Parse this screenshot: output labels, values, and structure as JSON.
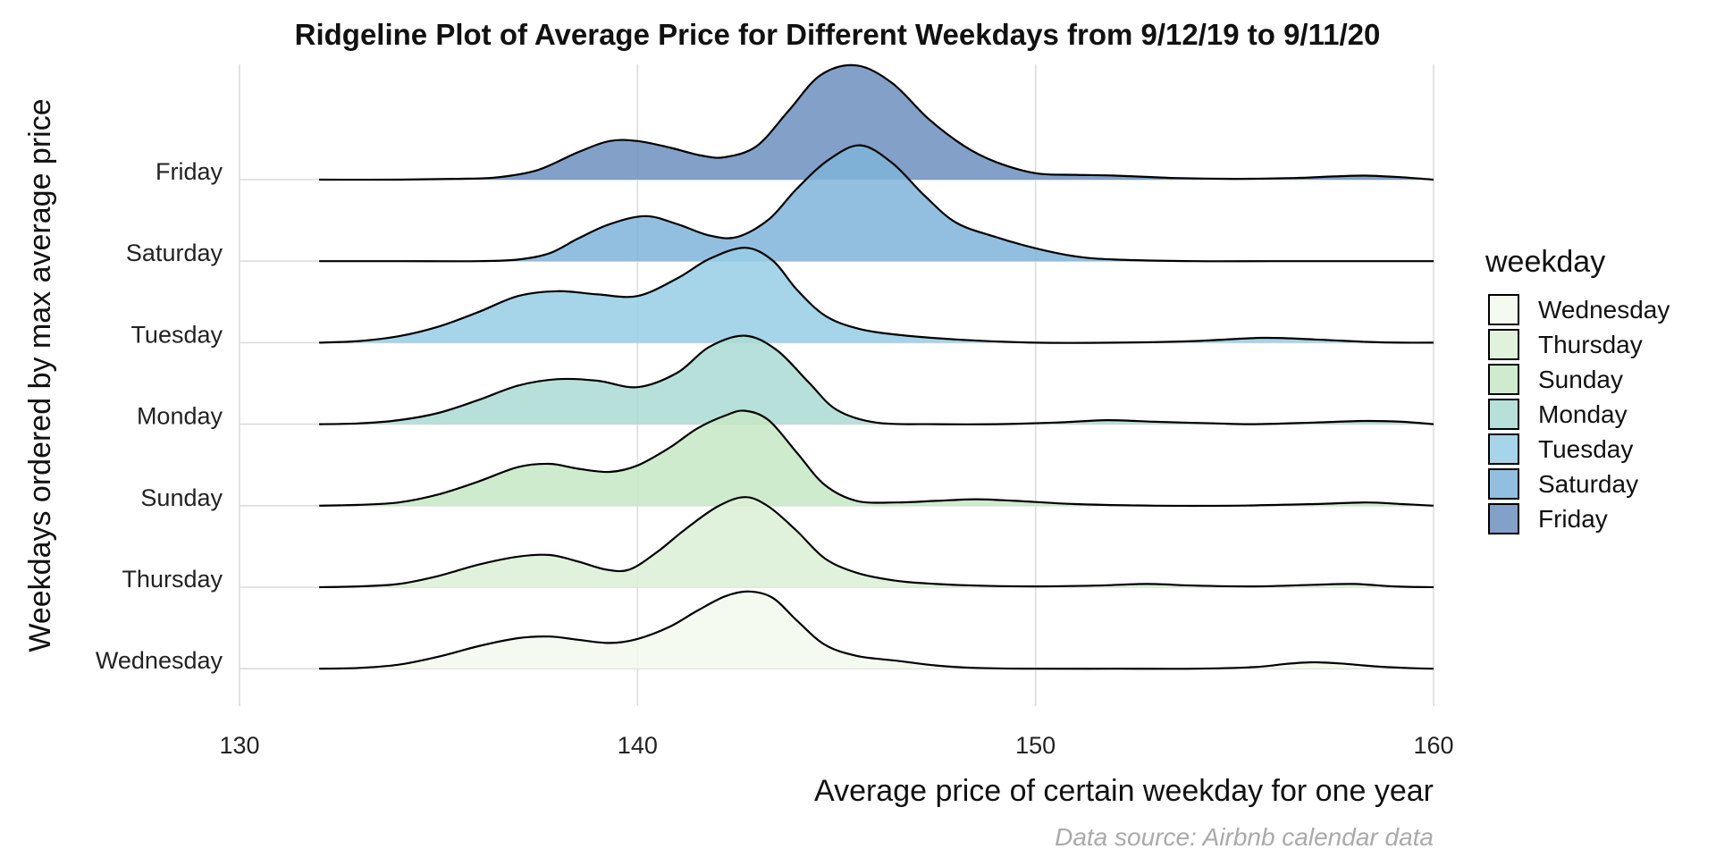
{
  "chart_data": {
    "type": "ridgeline",
    "title": "Ridgeline Plot of Average Price for Different Weekdays from 9/12/19 to 9/11/20",
    "xlabel": "Average price of certain weekday for one year",
    "ylabel": "Weekdays ordered by max average price",
    "caption": "Data source: Airbnb calendar data",
    "xlim": [
      130,
      160
    ],
    "x_ticks": [
      130,
      140,
      150,
      160
    ],
    "x_tick_labels": [
      "130",
      "140",
      "150",
      "160"
    ],
    "grid": true,
    "legend": {
      "title": "weekday",
      "position": "right",
      "entries": [
        "Wednesday",
        "Thursday",
        "Sunday",
        "Monday",
        "Tuesday",
        "Saturday",
        "Friday"
      ]
    },
    "series": [
      {
        "name": "Wednesday",
        "color": "#f3f9ef",
        "x": [
          132,
          133,
          134,
          135,
          136,
          137,
          137.8,
          138.5,
          139.3,
          140,
          140.8,
          141.5,
          142.2,
          142.8,
          143.4,
          144,
          144.7,
          145.5,
          146.5,
          147.5,
          148.5,
          150,
          152,
          154,
          155.5,
          156.3,
          157,
          157.8,
          158.5,
          159.3,
          160
        ],
        "y": [
          0,
          0.01,
          0.05,
          0.15,
          0.28,
          0.38,
          0.4,
          0.36,
          0.32,
          0.37,
          0.52,
          0.72,
          0.9,
          0.96,
          0.88,
          0.6,
          0.3,
          0.16,
          0.1,
          0.04,
          0.01,
          0,
          0,
          0,
          0.02,
          0.06,
          0.08,
          0.06,
          0.03,
          0.01,
          0
        ]
      },
      {
        "name": "Thursday",
        "color": "#dcf0d6",
        "x": [
          132,
          133,
          134,
          135,
          136,
          137,
          137.8,
          138.5,
          139.2,
          139.8,
          140.5,
          141.2,
          142,
          142.7,
          143.3,
          144,
          144.7,
          145.5,
          146.5,
          147.5,
          148.5,
          150,
          151.5,
          152.8,
          154,
          155.5,
          157,
          158,
          159,
          160
        ],
        "y": [
          0,
          0.01,
          0.04,
          0.14,
          0.28,
          0.38,
          0.4,
          0.32,
          0.22,
          0.22,
          0.44,
          0.72,
          1.0,
          1.12,
          1.0,
          0.7,
          0.36,
          0.18,
          0.08,
          0.04,
          0.02,
          0.01,
          0.02,
          0.04,
          0.02,
          0.01,
          0.03,
          0.04,
          0.01,
          0
        ]
      },
      {
        "name": "Sunday",
        "color": "#c7e8c6",
        "x": [
          132,
          133,
          134,
          135,
          136,
          137,
          137.8,
          138.5,
          139.3,
          140,
          140.8,
          141.5,
          142.2,
          142.7,
          143.3,
          144,
          144.7,
          145.5,
          146.5,
          147.5,
          148.5,
          149.5,
          151,
          153,
          155,
          157,
          158.3,
          159.2,
          160
        ],
        "y": [
          0,
          0.01,
          0.04,
          0.14,
          0.3,
          0.48,
          0.52,
          0.46,
          0.42,
          0.5,
          0.72,
          0.96,
          1.12,
          1.18,
          1.06,
          0.66,
          0.26,
          0.06,
          0.04,
          0.06,
          0.08,
          0.06,
          0.02,
          0,
          0,
          0.02,
          0.04,
          0.02,
          0
        ]
      },
      {
        "name": "Monday",
        "color": "#abdbd3",
        "x": [
          132,
          133,
          134,
          135,
          136,
          137,
          138,
          139,
          140,
          141,
          141.8,
          142.7,
          143.5,
          144.3,
          145,
          146,
          147.5,
          149,
          150.5,
          151.8,
          153,
          154.5,
          155.5,
          157,
          158.3,
          159.2,
          160
        ],
        "y": [
          0,
          0.01,
          0.05,
          0.14,
          0.3,
          0.48,
          0.56,
          0.54,
          0.46,
          0.64,
          0.96,
          1.1,
          0.92,
          0.52,
          0.18,
          0.02,
          0,
          0,
          0.02,
          0.05,
          0.03,
          0.01,
          0,
          0.02,
          0.04,
          0.03,
          0
        ]
      },
      {
        "name": "Tuesday",
        "color": "#96cde4",
        "x": [
          132,
          133,
          134,
          135,
          136,
          137,
          138,
          139,
          140,
          141,
          141.8,
          142.7,
          143.4,
          144,
          144.7,
          145.5,
          146.5,
          148,
          150,
          152,
          154,
          155.7,
          157,
          158.3,
          159.2,
          160
        ],
        "y": [
          0,
          0.02,
          0.08,
          0.2,
          0.38,
          0.58,
          0.64,
          0.6,
          0.58,
          0.8,
          1.04,
          1.18,
          1.02,
          0.66,
          0.34,
          0.18,
          0.1,
          0.04,
          0,
          0,
          0.02,
          0.06,
          0.04,
          0.01,
          0,
          0
        ]
      },
      {
        "name": "Saturday",
        "color": "#7fb4d9",
        "x": [
          132,
          134,
          136,
          137,
          137.8,
          138.5,
          139.3,
          140.2,
          141,
          141.8,
          142.5,
          143.3,
          144,
          144.8,
          145.6,
          146.4,
          147.2,
          148,
          149,
          150,
          151,
          152,
          154,
          156,
          158,
          160
        ],
        "y": [
          0,
          0,
          0,
          0.02,
          0.1,
          0.28,
          0.46,
          0.56,
          0.46,
          0.32,
          0.3,
          0.52,
          0.9,
          1.26,
          1.44,
          1.22,
          0.82,
          0.48,
          0.3,
          0.16,
          0.06,
          0.02,
          0,
          0,
          0,
          0
        ]
      },
      {
        "name": "Friday",
        "color": "#6c8fbe",
        "x": [
          132,
          134,
          135.5,
          136.5,
          137.5,
          138.5,
          139.3,
          140,
          140.8,
          141.6,
          142.2,
          143,
          143.8,
          144.6,
          145.5,
          146.4,
          147.3,
          148.2,
          149,
          150,
          151,
          152,
          153.5,
          155,
          156.5,
          157.5,
          158.3,
          159.2,
          160
        ],
        "y": [
          0,
          0,
          0.01,
          0.03,
          0.12,
          0.34,
          0.48,
          0.48,
          0.4,
          0.3,
          0.28,
          0.42,
          0.86,
          1.3,
          1.42,
          1.2,
          0.76,
          0.42,
          0.22,
          0.08,
          0.06,
          0.05,
          0.02,
          0.01,
          0.02,
          0.04,
          0.05,
          0.03,
          0
        ]
      }
    ]
  }
}
